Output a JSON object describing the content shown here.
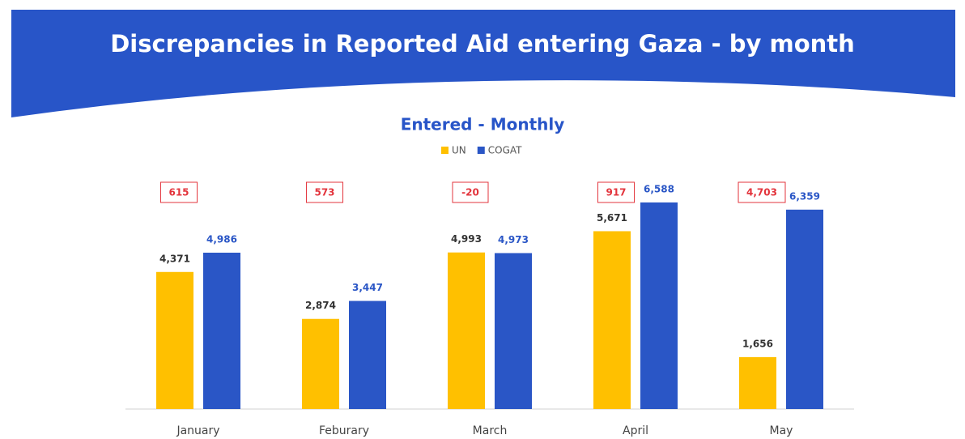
{
  "chart_data": {
    "type": "bar",
    "title": "Discrepancies in Reported Aid entering Gaza - by month",
    "subtitle": "Entered - Monthly",
    "categories": [
      "January",
      "Feburary",
      "March",
      "April",
      "May"
    ],
    "series": [
      {
        "name": "UN",
        "color": "#ffc000",
        "values": [
          4371,
          2874,
          4993,
          5671,
          1656
        ],
        "value_labels": [
          "4,371",
          "2,874",
          "4,993",
          "5,671",
          "1,656"
        ]
      },
      {
        "name": "COGAT",
        "color": "#2a56c6",
        "values": [
          4986,
          3447,
          4973,
          6588,
          6359
        ],
        "value_labels": [
          "4,986",
          "3,447",
          "4,973",
          "6,588",
          "6,359"
        ]
      }
    ],
    "annotations": {
      "color": "#e3343c",
      "values": [
        615,
        573,
        -20,
        917,
        4703
      ],
      "value_labels": [
        "615",
        "573",
        "-20",
        "917",
        "4,703"
      ]
    },
    "ylim": [
      0,
      7000
    ],
    "legend": "top"
  }
}
